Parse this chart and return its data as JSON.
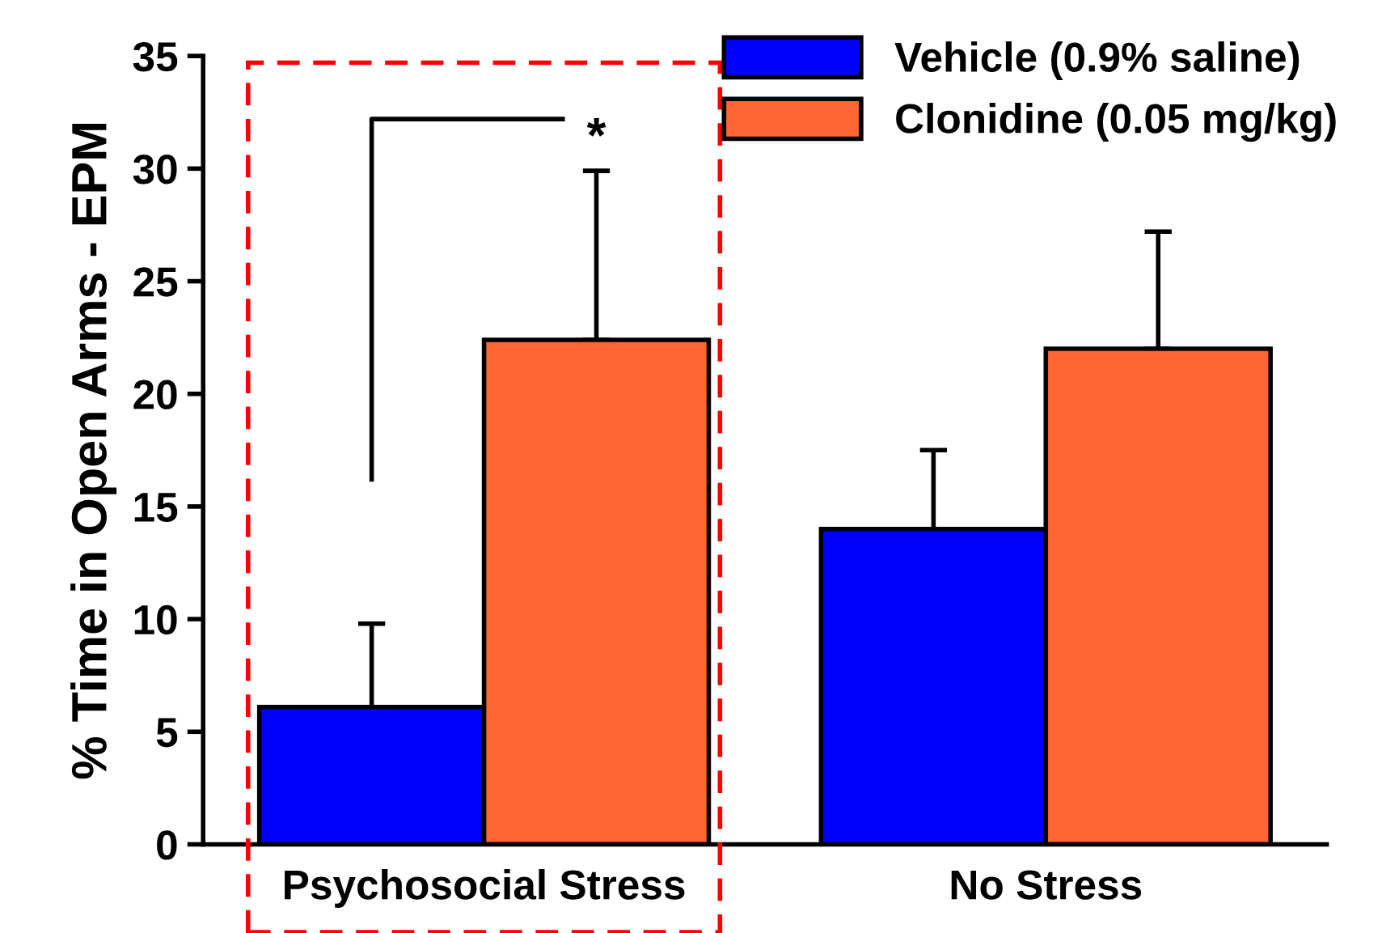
{
  "chart_data": {
    "type": "bar",
    "ylabel": "% Time in Open Arms - EPM",
    "categories": [
      "Psychosocial Stress",
      "No Stress"
    ],
    "series": [
      {
        "name": "Vehicle (0.9% saline)",
        "color": "#0000ff",
        "values": [
          6.1,
          14.0
        ],
        "errors": [
          [
            6.1,
            9.8
          ],
          [
            14.0,
            17.5
          ]
        ]
      },
      {
        "name": "Clonidine (0.05 mg/kg)",
        "color": "#ff6633",
        "values": [
          22.4,
          22.0
        ],
        "errors": [
          [
            22.4,
            29.9
          ],
          [
            22.0,
            27.2
          ]
        ]
      }
    ],
    "ylim": [
      0,
      35
    ],
    "yticks": [
      0,
      5,
      10,
      15,
      20,
      25,
      30,
      35
    ],
    "grid": false,
    "legend": "top right",
    "annotations": [
      "*"
    ]
  }
}
